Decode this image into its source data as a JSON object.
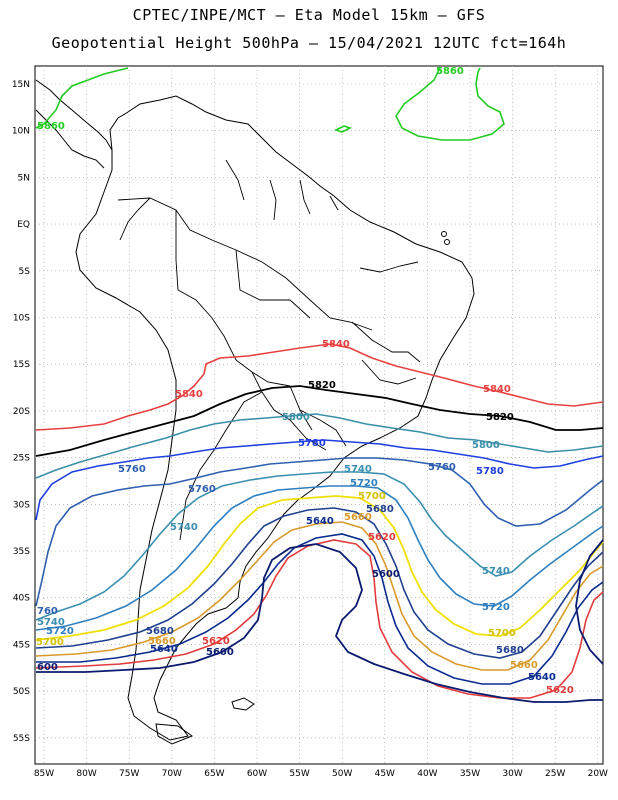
{
  "title": {
    "line1": "CPTEC/INPE/MCT –  Eta Model 15km – GFS",
    "line2": "Geopotential Height 500hPa – 15/04/2021 12UTC fct=164h"
  },
  "axes": {
    "lon_labels": [
      "85W",
      "80W",
      "75W",
      "70W",
      "65W",
      "60W",
      "55W",
      "50W",
      "45W",
      "40W",
      "35W",
      "30W",
      "25W",
      "20W"
    ],
    "lat_labels": [
      "15N",
      "10N",
      "5N",
      "EQ",
      "5S",
      "10S",
      "15S",
      "20S",
      "25S",
      "30S",
      "35S",
      "40S",
      "45S",
      "50S",
      "55S"
    ]
  },
  "contours": [
    {
      "value": "5600",
      "color": "#0a1a6e"
    },
    {
      "value": "5620",
      "color": "#e23b3b"
    },
    {
      "value": "5640",
      "color": "#0a2b8f"
    },
    {
      "value": "5660",
      "color": "#d89a2a"
    },
    {
      "value": "5680",
      "color": "#1f3f8f"
    },
    {
      "value": "5700",
      "color": "#f0e000"
    },
    {
      "value": "5720",
      "color": "#2e7fc0"
    },
    {
      "value": "5740",
      "color": "#3a8fb0"
    },
    {
      "value": "5760",
      "color": "#2e5fb0"
    },
    {
      "value": "5780",
      "color": "#1f3fe0"
    },
    {
      "value": "5800",
      "color": "#3a8fa8"
    },
    {
      "value": "5820",
      "color": "#000000"
    },
    {
      "value": "5840",
      "color": "#e84040"
    },
    {
      "value": "5860",
      "color": "#22cc22"
    }
  ],
  "labels": {
    "l5860a": "5860",
    "l5860b": "5860",
    "l5840a": "5840",
    "l5840b": "5840",
    "l5840c": "5840",
    "l5820a": "5820",
    "l5820b": "5820",
    "l5800a": "5800",
    "l5800b": "5800",
    "l5780a": "5780",
    "l5780b": "5780",
    "l5760a": "5760",
    "l5760b": "5760",
    "l5760c": "5760",
    "l5760d": "760",
    "l5740a": "5740",
    "l5740b": "5740",
    "l5740c": "5740",
    "l5740d": "5740",
    "l5720a": "5720",
    "l5720b": "5720",
    "l5720c": "5720",
    "l5700a": "5700",
    "l5700b": "5700",
    "l5700c": "5700",
    "l5680a": "5680",
    "l5680b": "5680",
    "l5680c": "5680",
    "l5660a": "5660",
    "l5660b": "5660",
    "l5660c": "5660",
    "l5640a": "5640",
    "l5640b": "5640",
    "l5640c": "5640",
    "l5620a": "5620",
    "l5620b": "5620",
    "l5620c": "5620",
    "l5600a": "5600",
    "l5600b": "5600",
    "l5600c": "600"
  }
}
